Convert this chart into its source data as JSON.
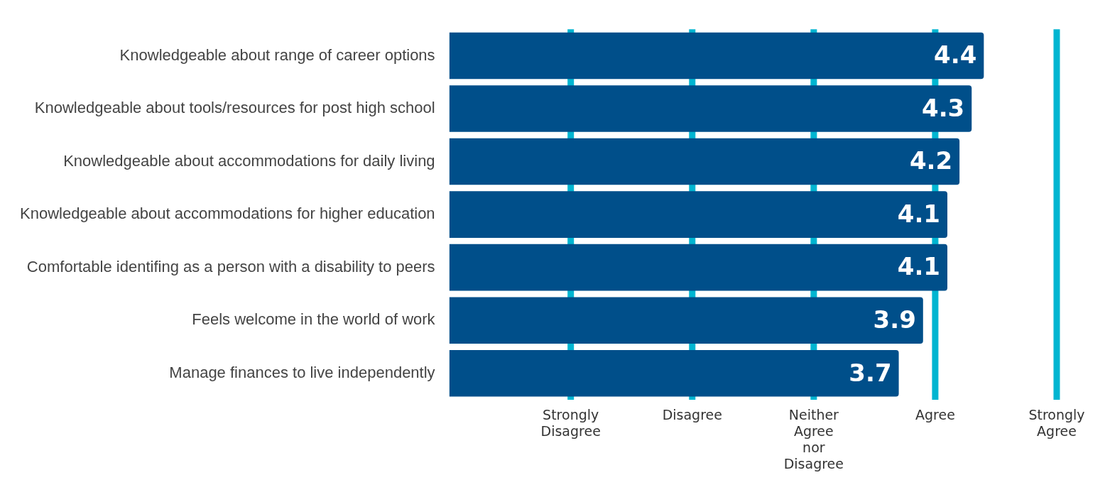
{
  "chart_data": {
    "type": "bar",
    "orientation": "horizontal",
    "categories": [
      "Knowledgeable about range of career options",
      "Knowledgeable about tools/resources for post high school",
      "Knowledgeable about accommodations for daily living",
      "Knowledgeable about accommodations for higher education",
      "Comfortable identifing as a person with a disability to peers",
      "Feels welcome in the world of work",
      "Manage finances to live independently"
    ],
    "values": [
      4.4,
      4.3,
      4.2,
      4.1,
      4.1,
      3.9,
      3.7
    ],
    "color": "#004f8a",
    "tick_labels": "y",
    "ref_lines": [
      {
        "axis": "x",
        "value": 1,
        "label": "Strongly Disagree",
        "color": "#00b5d1"
      },
      {
        "axis": "x",
        "value": 2,
        "label": "Disagree",
        "color": "#00b5d1"
      },
      {
        "axis": "x",
        "value": 3,
        "label": "Neither Agree nor Disagree",
        "color": "#00b5d1"
      },
      {
        "axis": "x",
        "value": 4,
        "label": "Agree",
        "color": "#00b5d1"
      },
      {
        "axis": "x",
        "value": 5,
        "label": "Strongly Agree",
        "color": "#00b5d1"
      }
    ],
    "data_labels": true
  }
}
